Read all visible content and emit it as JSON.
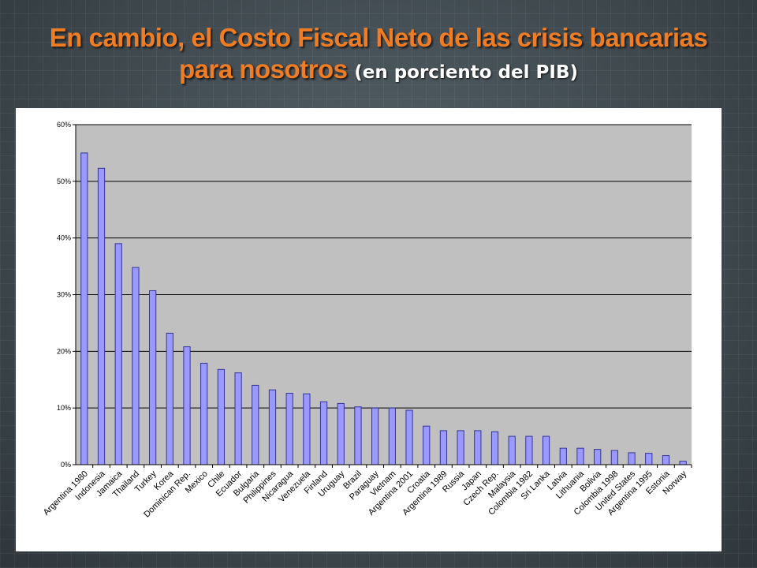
{
  "title": {
    "line1": "En cambio, el Costo Fiscal Neto de las crisis bancarias",
    "line2": "para nosotros",
    "subtitle": "(en porciento del PIB)"
  },
  "colors": {
    "title": "#f07c23",
    "plot_background": "#c0c0c0",
    "bar_fill": "#9999ff",
    "bar_stroke": "#333399"
  },
  "chart_data": {
    "type": "bar",
    "categories": [
      "Argentina 1980",
      "Indonesia",
      "Jamaica",
      "Thailand",
      "Turkey",
      "Korea",
      "Dominican Rep.",
      "Mexico",
      "Chile",
      "Ecuador",
      "Bulgaria",
      "Philippines",
      "Nicaragua",
      "Venezuela",
      "Finland",
      "Uruguay",
      "Brazil",
      "Paraguay",
      "Vietnam",
      "Argentina 2001",
      "Croatia",
      "Argentina 1989",
      "Russia",
      "Japan",
      "Czech Rep.",
      "Malaysia",
      "Colombia 1982",
      "Sri Lanka",
      "Latvia",
      "Lithuania",
      "Bolivia",
      "Colombia 1998",
      "United States",
      "Argentina 1995",
      "Estonia",
      "Norway"
    ],
    "values": [
      55,
      52.3,
      39,
      34.8,
      30.7,
      23.2,
      20.8,
      17.9,
      16.8,
      16.2,
      14,
      13.2,
      12.6,
      12.5,
      11.1,
      10.8,
      10.2,
      10,
      10,
      9.6,
      6.8,
      6,
      6,
      6,
      5.8,
      5,
      5,
      5,
      2.9,
      2.9,
      2.7,
      2.5,
      2.1,
      2,
      1.6,
      0.6
    ],
    "yticks": [
      "0%",
      "10%",
      "20%",
      "30%",
      "40%",
      "50%",
      "60%"
    ],
    "ylim": [
      0,
      60
    ],
    "grid": true,
    "legend": "none"
  }
}
